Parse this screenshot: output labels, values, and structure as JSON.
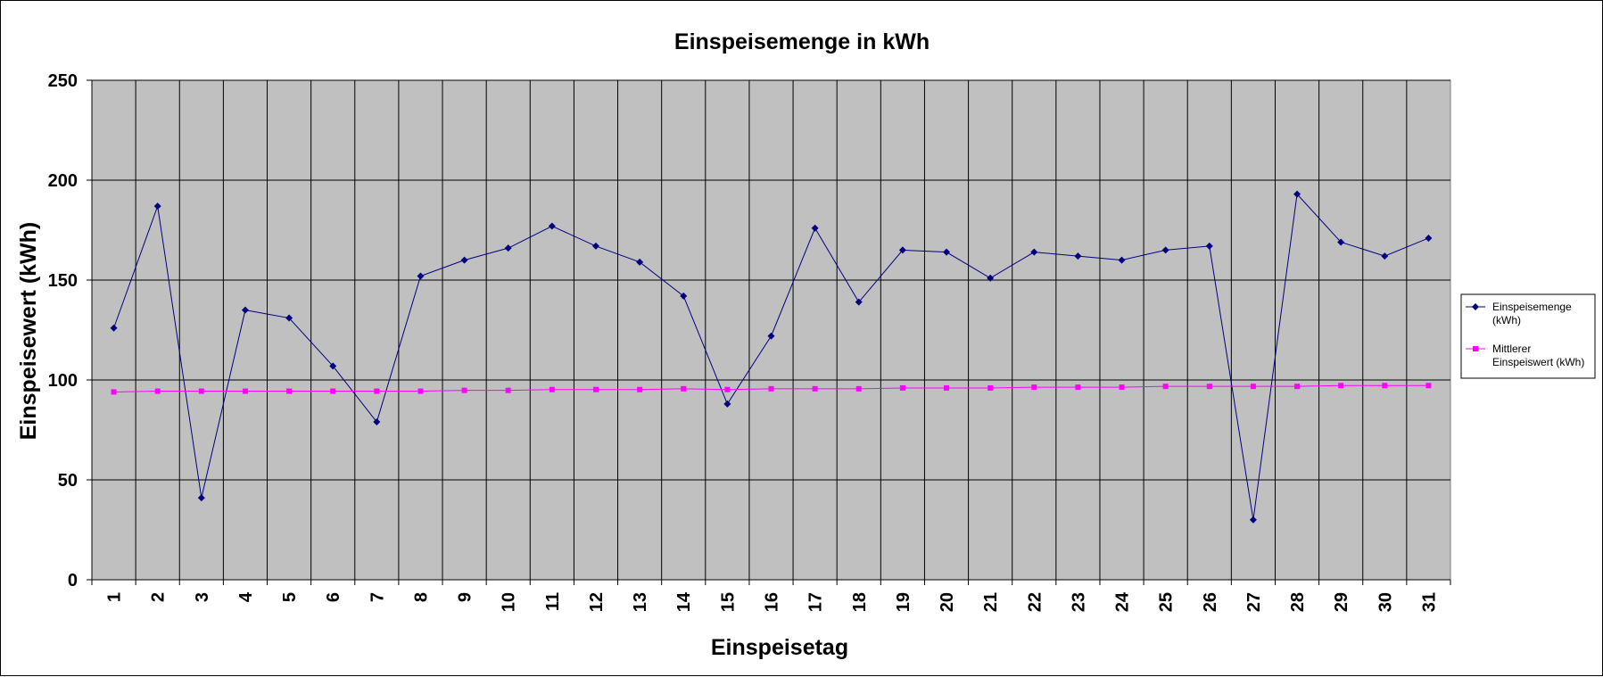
{
  "chart_data": {
    "type": "line",
    "title": "Einspeisemenge in kWh",
    "xlabel": "Einspeisetag",
    "ylabel": "Einspeisewert  (kWh)",
    "categories": [
      "1",
      "2",
      "3",
      "4",
      "5",
      "6",
      "7",
      "8",
      "9",
      "10",
      "11",
      "12",
      "13",
      "14",
      "15",
      "16",
      "17",
      "18",
      "19",
      "20",
      "21",
      "22",
      "23",
      "24",
      "25",
      "26",
      "27",
      "28",
      "29",
      "30",
      "31"
    ],
    "ylim": [
      0,
      250
    ],
    "yticks": [
      0,
      50,
      100,
      150,
      200,
      250
    ],
    "grid": true,
    "legend_position": "right",
    "plot_background": "#c0c0c0",
    "series": [
      {
        "name": "Einspeisemenge (kWh)",
        "legend_lines": [
          "Einspeisemenge",
          "(kWh)"
        ],
        "color": "#000080",
        "marker": "diamond",
        "values": [
          126,
          187,
          41,
          135,
          131,
          107,
          79,
          152,
          160,
          166,
          177,
          167,
          159,
          142,
          88,
          122,
          176,
          139,
          165,
          164,
          151,
          164,
          162,
          160,
          165,
          167,
          30,
          193,
          169,
          162,
          171
        ]
      },
      {
        "name": "Mittlerer Einspeiswert (kWh)",
        "legend_lines": [
          "Mittlerer",
          "Einspeiswert (kWh)"
        ],
        "color": "#ff00ff",
        "marker": "square",
        "values": [
          94,
          94.4,
          94.4,
          94.4,
          94.4,
          94.4,
          94.4,
          94.4,
          94.8,
          94.8,
          95.2,
          95.2,
          95.2,
          95.6,
          95.2,
          95.6,
          95.6,
          95.6,
          96,
          96,
          96,
          96.4,
          96.4,
          96.4,
          96.8,
          96.8,
          96.8,
          96.8,
          97.2,
          97.2,
          97.2
        ]
      }
    ]
  }
}
